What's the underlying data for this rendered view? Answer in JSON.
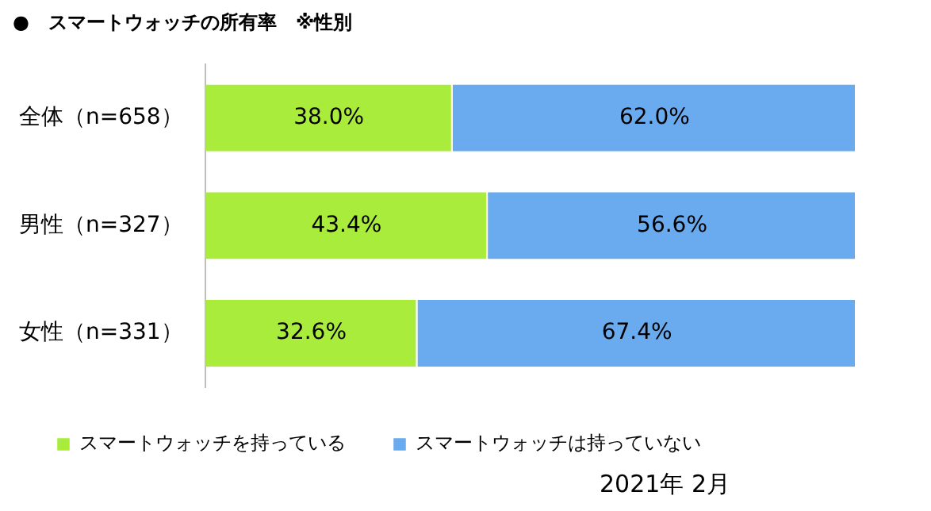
{
  "chart_data": {
    "type": "bar",
    "orientation": "horizontal",
    "stacked": true,
    "title": "●　スマートウォッチの所有率　※性別",
    "categories": [
      "全体（n=658）",
      "男性（n=327）",
      "女性（n=331）"
    ],
    "series": [
      {
        "name": "スマートウォッチを持っている",
        "color": "#a9ec3c",
        "values": [
          38.0,
          43.4,
          32.6
        ],
        "value_labels": [
          "38.0%",
          "43.4%",
          "32.6%"
        ]
      },
      {
        "name": "スマートウォッチは持っていない",
        "color": "#6aaaee",
        "values": [
          62.0,
          56.6,
          67.4
        ],
        "value_labels": [
          "62.0%",
          "56.6%",
          "67.4%"
        ]
      }
    ],
    "legend": "bottom",
    "annotations": [
      "2021年 2月"
    ]
  }
}
